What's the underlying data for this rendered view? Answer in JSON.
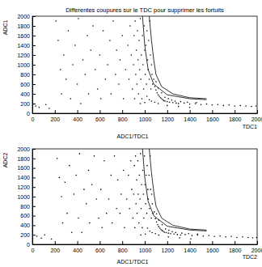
{
  "chart_data": [
    {
      "type": "scatter",
      "title": "Differentes coupures sur le TDC pour supprimer les fortuits",
      "xlabel": "TDC1",
      "ylabel": "ADC1",
      "caption": "ADC1/TDC1",
      "xlim": [
        0,
        2000
      ],
      "ylim": [
        0,
        2000
      ],
      "xticks": [
        0,
        200,
        400,
        600,
        800,
        1000,
        1200,
        1400,
        1600,
        1800,
        2000
      ],
      "yticks": [
        0,
        200,
        400,
        600,
        800,
        1000,
        1200,
        1400,
        1600,
        1800,
        2000
      ],
      "series": [
        {
          "type": "scatter",
          "color": "#000000",
          "marker": "dot",
          "x": [
            30,
            60,
            120,
            150,
            210,
            230,
            250,
            260,
            280,
            300,
            320,
            340,
            360,
            380,
            400,
            410,
            430,
            450,
            470,
            490,
            500,
            520,
            540,
            560,
            580,
            600,
            610,
            630,
            650,
            670,
            690,
            700,
            720,
            740,
            750,
            770,
            780,
            800,
            810,
            830,
            850,
            860,
            870,
            880,
            890,
            900,
            905,
            910,
            915,
            920,
            925,
            930,
            935,
            940,
            945,
            950,
            955,
            960,
            965,
            970,
            975,
            980,
            985,
            990,
            995,
            1000,
            1005,
            1010,
            1015,
            1020,
            1025,
            1030,
            1035,
            1040,
            1045,
            1050,
            1055,
            1060,
            1065,
            1070,
            1080,
            1090,
            1100,
            1110,
            1120,
            1130,
            1140,
            1150,
            1160,
            1170,
            1180,
            1200,
            1220,
            1250,
            1280,
            1300,
            1350,
            1400,
            1450,
            1500,
            1550,
            1600,
            1650,
            1700,
            1750,
            1800,
            1850,
            1900,
            1950,
            1990,
            1100,
            1120,
            1150,
            1180,
            1210,
            1240,
            1270,
            1320,
            1380,
            1460,
            1020,
            1040,
            1060,
            1090,
            1120,
            1000,
            960,
            1200,
            1300,
            1400
          ],
          "values": [
            150,
            120,
            180,
            100,
            1900,
            1500,
            900,
            400,
            1200,
            700,
            1700,
            300,
            1000,
            1400,
            600,
            1950,
            200,
            1100,
            800,
            1600,
            400,
            1300,
            1800,
            900,
            500,
            1200,
            300,
            1700,
            700,
            1000,
            1500,
            400,
            1900,
            800,
            1300,
            600,
            1100,
            1600,
            300,
            900,
            1400,
            700,
            1800,
            1200,
            500,
            1000,
            1600,
            300,
            1900,
            800,
            1300,
            600,
            1700,
            1100,
            400,
            1500,
            900,
            1950,
            700,
            1200,
            300,
            1600,
            1000,
            500,
            1800,
            1300,
            800,
            1400,
            600,
            1700,
            1100,
            900,
            1500,
            700,
            1900,
            1200,
            500,
            1000,
            800,
            600,
            700,
            550,
            480,
            420,
            380,
            350,
            320,
            300,
            280,
            260,
            250,
            240,
            230,
            220,
            210,
            200,
            210,
            190,
            200,
            180,
            190,
            170,
            180,
            160,
            170,
            150,
            160,
            150,
            140,
            150,
            650,
            520,
            420,
            330,
            300,
            270,
            250,
            240,
            230,
            220,
            350,
            280,
            250,
            230,
            200,
            220,
            200,
            160,
            140,
            120
          ]
        },
        {
          "type": "line",
          "color": "#000000",
          "line_style": "solid",
          "x": [
            1040,
            1060,
            1080,
            1100,
            1150,
            1250,
            1400,
            1550
          ],
          "values": [
            2000,
            1500,
            1100,
            800,
            550,
            400,
            320,
            300
          ]
        },
        {
          "type": "line",
          "color": "#000000",
          "line_style": "solid",
          "x": [
            980,
            1000,
            1030,
            1080,
            1200,
            1400,
            1550
          ],
          "values": [
            2000,
            1400,
            900,
            600,
            380,
            300,
            280
          ]
        }
      ]
    },
    {
      "type": "scatter",
      "xlabel": "TDC2",
      "ylabel": "ADC2",
      "caption": "ADC1/TDC1",
      "xlim": [
        0,
        2000
      ],
      "ylim": [
        0,
        2000
      ],
      "xticks": [
        0,
        200,
        400,
        600,
        800,
        1000,
        1200,
        1400,
        1600,
        1800,
        2000
      ],
      "yticks": [
        0,
        200,
        400,
        600,
        800,
        1000,
        1200,
        1400,
        1600,
        1800,
        2000
      ],
      "series": [
        {
          "type": "scatter",
          "color": "#000000",
          "marker": "dot",
          "x": [
            40,
            80,
            110,
            170,
            220,
            240,
            260,
            270,
            290,
            310,
            330,
            350,
            370,
            390,
            410,
            420,
            440,
            460,
            480,
            500,
            510,
            530,
            550,
            570,
            590,
            610,
            620,
            640,
            660,
            680,
            700,
            710,
            730,
            750,
            760,
            780,
            790,
            810,
            820,
            840,
            855,
            865,
            875,
            885,
            895,
            902,
            908,
            912,
            918,
            922,
            928,
            932,
            938,
            942,
            948,
            952,
            958,
            962,
            968,
            972,
            978,
            982,
            988,
            992,
            998,
            1002,
            1008,
            1012,
            1018,
            1022,
            1028,
            1032,
            1038,
            1042,
            1048,
            1052,
            1058,
            1062,
            1068,
            1072,
            1085,
            1095,
            1105,
            1115,
            1125,
            1135,
            1145,
            1155,
            1165,
            1175,
            1190,
            1210,
            1230,
            1260,
            1290,
            1320,
            1360,
            1420,
            1470,
            1520,
            1570,
            1620,
            1670,
            1720,
            1770,
            1820,
            1870,
            1920,
            1960,
            1995,
            1105,
            1125,
            1155,
            1185,
            1215,
            1245,
            1275,
            1330,
            1390,
            1470,
            1025,
            1045,
            1065,
            1095,
            1125,
            1005,
            965,
            1210,
            1310,
            1410
          ],
          "values": [
            170,
            130,
            200,
            110,
            1800,
            1400,
            1000,
            450,
            1300,
            650,
            1650,
            250,
            1050,
            1450,
            550,
            1900,
            250,
            1150,
            850,
            1550,
            450,
            1250,
            1850,
            950,
            550,
            1150,
            350,
            1750,
            650,
            950,
            1450,
            450,
            1850,
            750,
            1350,
            650,
            1050,
            1550,
            350,
            950,
            1450,
            750,
            1750,
            1150,
            550,
            1050,
            1650,
            350,
            1850,
            850,
            1350,
            650,
            1750,
            1050,
            450,
            1450,
            950,
            1900,
            750,
            1250,
            350,
            1550,
            1050,
            550,
            1850,
            1250,
            850,
            1450,
            650,
            1650,
            1150,
            950,
            1450,
            750,
            1850,
            1150,
            550,
            1050,
            850,
            650,
            680,
            540,
            470,
            410,
            370,
            340,
            310,
            290,
            270,
            255,
            245,
            235,
            225,
            215,
            205,
            195,
            205,
            185,
            195,
            175,
            185,
            165,
            175,
            155,
            165,
            145,
            155,
            145,
            135,
            145,
            640,
            510,
            410,
            320,
            295,
            265,
            245,
            235,
            225,
            215,
            340,
            275,
            245,
            225,
            195,
            215,
            195,
            155,
            135,
            115
          ]
        },
        {
          "type": "line",
          "color": "#000000",
          "line_style": "solid",
          "x": [
            1040,
            1060,
            1080,
            1100,
            1150,
            1250,
            1400,
            1550
          ],
          "values": [
            2000,
            1500,
            1100,
            800,
            550,
            400,
            320,
            300
          ]
        },
        {
          "type": "line",
          "color": "#000000",
          "line_style": "solid",
          "x": [
            980,
            1000,
            1030,
            1080,
            1200,
            1400,
            1550
          ],
          "values": [
            2000,
            1400,
            900,
            600,
            380,
            300,
            280
          ]
        }
      ]
    }
  ]
}
